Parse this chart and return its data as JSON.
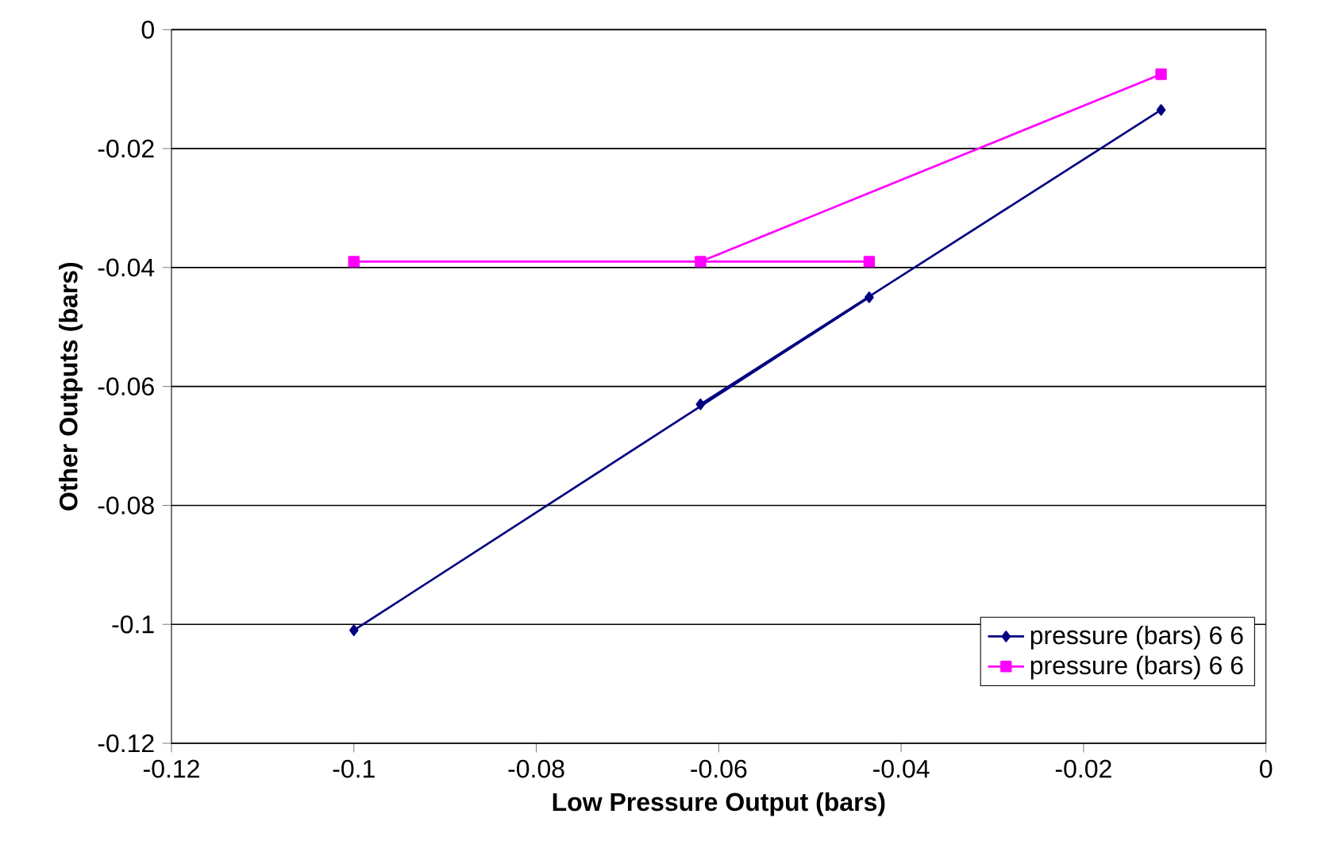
{
  "chart_data": {
    "type": "line",
    "xlabel": "Low Pressure Output (bars)",
    "ylabel": "Other Outputs (bars)",
    "xlim": [
      -0.12,
      0
    ],
    "xticks": [
      -0.12,
      -0.1,
      -0.08,
      -0.06,
      -0.04,
      -0.02,
      0
    ],
    "ylim": [
      -0.12,
      0
    ],
    "yticks": [
      -0.12,
      -0.1,
      -0.08,
      -0.06,
      -0.04,
      -0.02,
      0
    ],
    "grid": "y",
    "legend": "bottom right",
    "series": [
      {
        "name": "pressure (bars) 6 6",
        "color": "#000080",
        "marker": "diamond",
        "x": [
          -0.1,
          -0.0435,
          -0.062,
          -0.0115
        ],
        "values": [
          -0.101,
          -0.045,
          -0.063,
          -0.0135
        ]
      },
      {
        "name": "pressure (bars) 6 6",
        "color": "#ff00ff",
        "marker": "square",
        "x": [
          -0.1,
          -0.0435,
          -0.062,
          -0.0115
        ],
        "values": [
          -0.039,
          -0.039,
          -0.039,
          -0.0075
        ]
      }
    ]
  }
}
